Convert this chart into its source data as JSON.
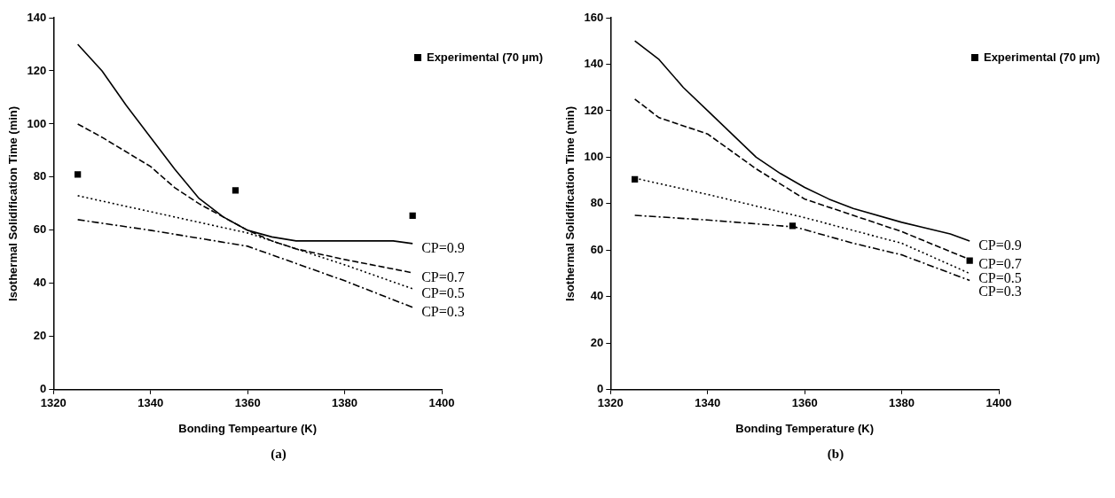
{
  "chart_data": [
    {
      "type": "line",
      "xlabel": "Bonding Tempearture (K)",
      "ylabel": "Isothermal Solidification Time (min)",
      "xlim": [
        1320,
        1400
      ],
      "xticks": [
        1320,
        1340,
        1360,
        1380,
        1400
      ],
      "ylim": [
        0,
        140
      ],
      "yticks": [
        0,
        20,
        40,
        60,
        80,
        100,
        120,
        140
      ],
      "grid": false,
      "legend": "top right",
      "annotations": [
        "(a)"
      ],
      "series": [
        {
          "name": "CP=0.9",
          "color": "#000000",
          "line_style": "solid",
          "marker": "none",
          "x": [
            1325,
            1330,
            1335,
            1340,
            1345,
            1350,
            1355,
            1360,
            1365,
            1370,
            1380,
            1390,
            1394
          ],
          "values": [
            130,
            120,
            107,
            95,
            83,
            72,
            65,
            60,
            57.5,
            56,
            56,
            56,
            55
          ]
        },
        {
          "name": "CP=0.7",
          "color": "#000000",
          "line_style": "dashed",
          "marker": "none",
          "x": [
            1325,
            1330,
            1340,
            1345,
            1350,
            1355,
            1360,
            1365,
            1370,
            1380,
            1394
          ],
          "values": [
            100,
            95,
            84,
            76,
            70,
            65,
            60,
            56,
            53,
            49,
            44
          ]
        },
        {
          "name": "CP=0.5",
          "color": "#000000",
          "line_style": "dotted",
          "marker": "none",
          "x": [
            1325,
            1340,
            1360,
            1380,
            1394
          ],
          "values": [
            73,
            67,
            59,
            47,
            38
          ]
        },
        {
          "name": "CP=0.3",
          "color": "#000000",
          "line_style": "dashdot",
          "marker": "none",
          "x": [
            1325,
            1340,
            1360,
            1380,
            1394
          ],
          "values": [
            64,
            60,
            54,
            41,
            31
          ]
        },
        {
          "name": "Experimental (70 µm)",
          "type": "scatter",
          "color": "#000000",
          "marker": "square",
          "x": [
            1325,
            1357.5,
            1394
          ],
          "values": [
            81,
            75,
            65.5
          ]
        }
      ]
    },
    {
      "type": "line",
      "xlabel": "Bonding Temperature (K)",
      "ylabel": "Isothermal Solidification Time (min)",
      "xlim": [
        1320,
        1400
      ],
      "xticks": [
        1320,
        1340,
        1360,
        1380,
        1400
      ],
      "ylim": [
        0,
        160
      ],
      "yticks": [
        0,
        20,
        40,
        60,
        80,
        100,
        120,
        140,
        160
      ],
      "grid": false,
      "legend": "top right",
      "annotations": [
        "(b)"
      ],
      "series": [
        {
          "name": "CP=0.9",
          "color": "#000000",
          "line_style": "solid",
          "marker": "none",
          "x": [
            1325,
            1330,
            1335,
            1340,
            1345,
            1350,
            1355,
            1360,
            1365,
            1370,
            1380,
            1390,
            1394
          ],
          "values": [
            150,
            142,
            130,
            120,
            110,
            100,
            93,
            87,
            82,
            78,
            72,
            67,
            64
          ]
        },
        {
          "name": "CP=0.7",
          "color": "#000000",
          "line_style": "dashed",
          "marker": "none",
          "x": [
            1325,
            1330,
            1340,
            1350,
            1360,
            1370,
            1380,
            1394
          ],
          "values": [
            125,
            117,
            110,
            95,
            82,
            75,
            68,
            56
          ]
        },
        {
          "name": "CP=0.5",
          "color": "#000000",
          "line_style": "dotted",
          "marker": "none",
          "x": [
            1325,
            1340,
            1360,
            1380,
            1394
          ],
          "values": [
            91,
            84,
            74,
            63,
            50
          ]
        },
        {
          "name": "CP=0.3",
          "color": "#000000",
          "line_style": "dashdot",
          "marker": "none",
          "x": [
            1325,
            1340,
            1358,
            1370,
            1380,
            1394
          ],
          "values": [
            75,
            73,
            70,
            63,
            58,
            47
          ]
        },
        {
          "name": "Experimental (70 µm)",
          "type": "scatter",
          "color": "#000000",
          "marker": "square",
          "x": [
            1325,
            1357.5,
            1394
          ],
          "values": [
            90.5,
            70.5,
            55.5
          ]
        }
      ]
    }
  ]
}
